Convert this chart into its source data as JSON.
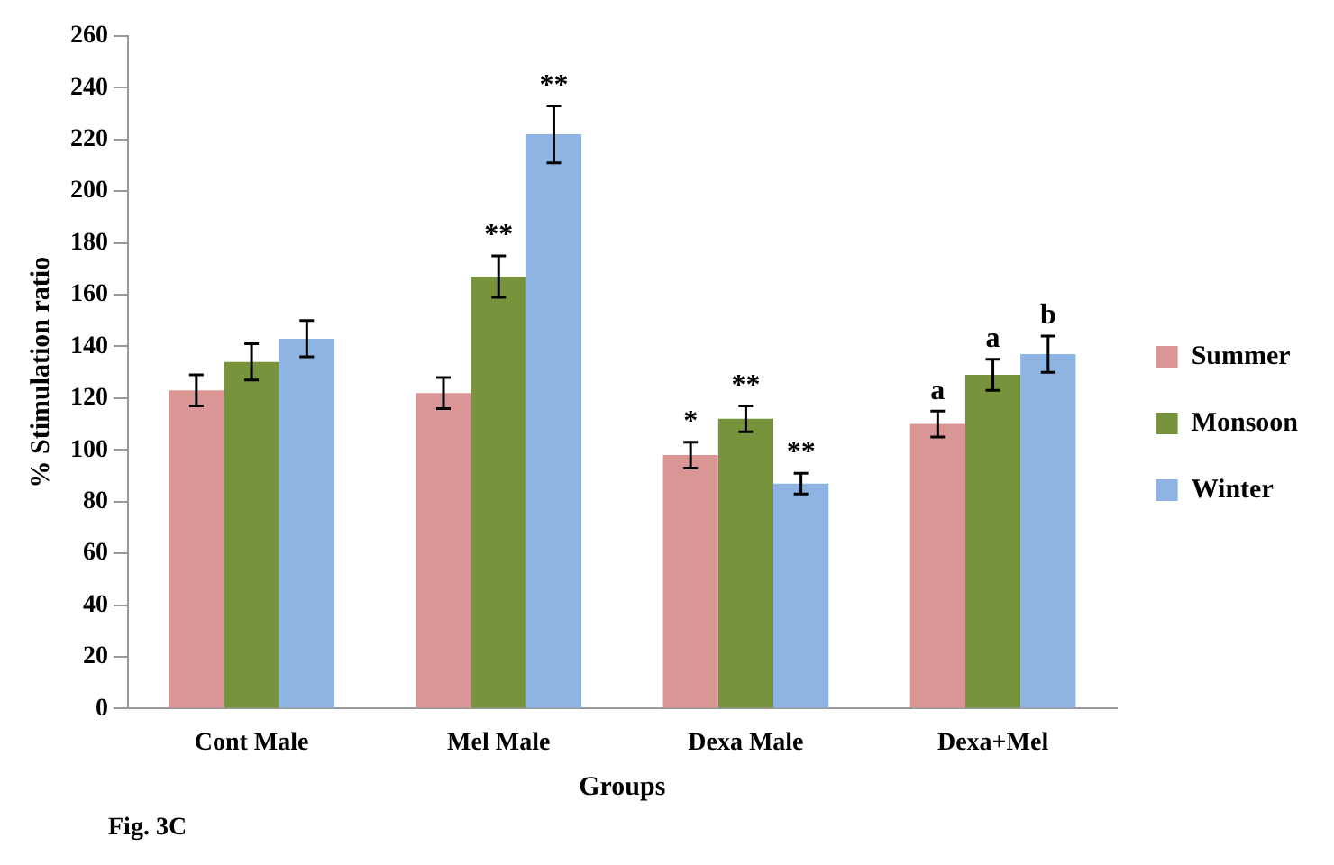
{
  "chart_data": {
    "type": "bar",
    "xlabel": "Groups",
    "ylabel": "% Stimulation ratio",
    "categories": [
      "Cont Male",
      "Mel Male",
      "Dexa Male",
      "Dexa+Mel"
    ],
    "series": [
      {
        "name": "Summer",
        "color": "#d99694",
        "values": [
          123,
          122,
          98,
          110
        ],
        "errors": [
          6,
          6,
          5,
          5
        ],
        "value_labels": [
          null,
          null,
          "*",
          "a"
        ]
      },
      {
        "name": "Monsoon",
        "color": "#77933c",
        "values": [
          134,
          167,
          112,
          129
        ],
        "errors": [
          7,
          8,
          5,
          6
        ],
        "value_labels": [
          null,
          "**",
          "**",
          "a"
        ]
      },
      {
        "name": "Winter",
        "color": "#8eb4e3",
        "values": [
          143,
          222,
          87,
          137
        ],
        "errors": [
          7,
          11,
          4,
          7
        ],
        "value_labels": [
          null,
          "**",
          "**",
          "b"
        ]
      }
    ],
    "ylim": [
      0,
      260
    ],
    "yticks": [
      0,
      20,
      40,
      60,
      80,
      100,
      120,
      140,
      160,
      180,
      200,
      220,
      240,
      260
    ],
    "grid": false,
    "legend": "right",
    "annotations": [
      "Fig. 3C"
    ]
  }
}
